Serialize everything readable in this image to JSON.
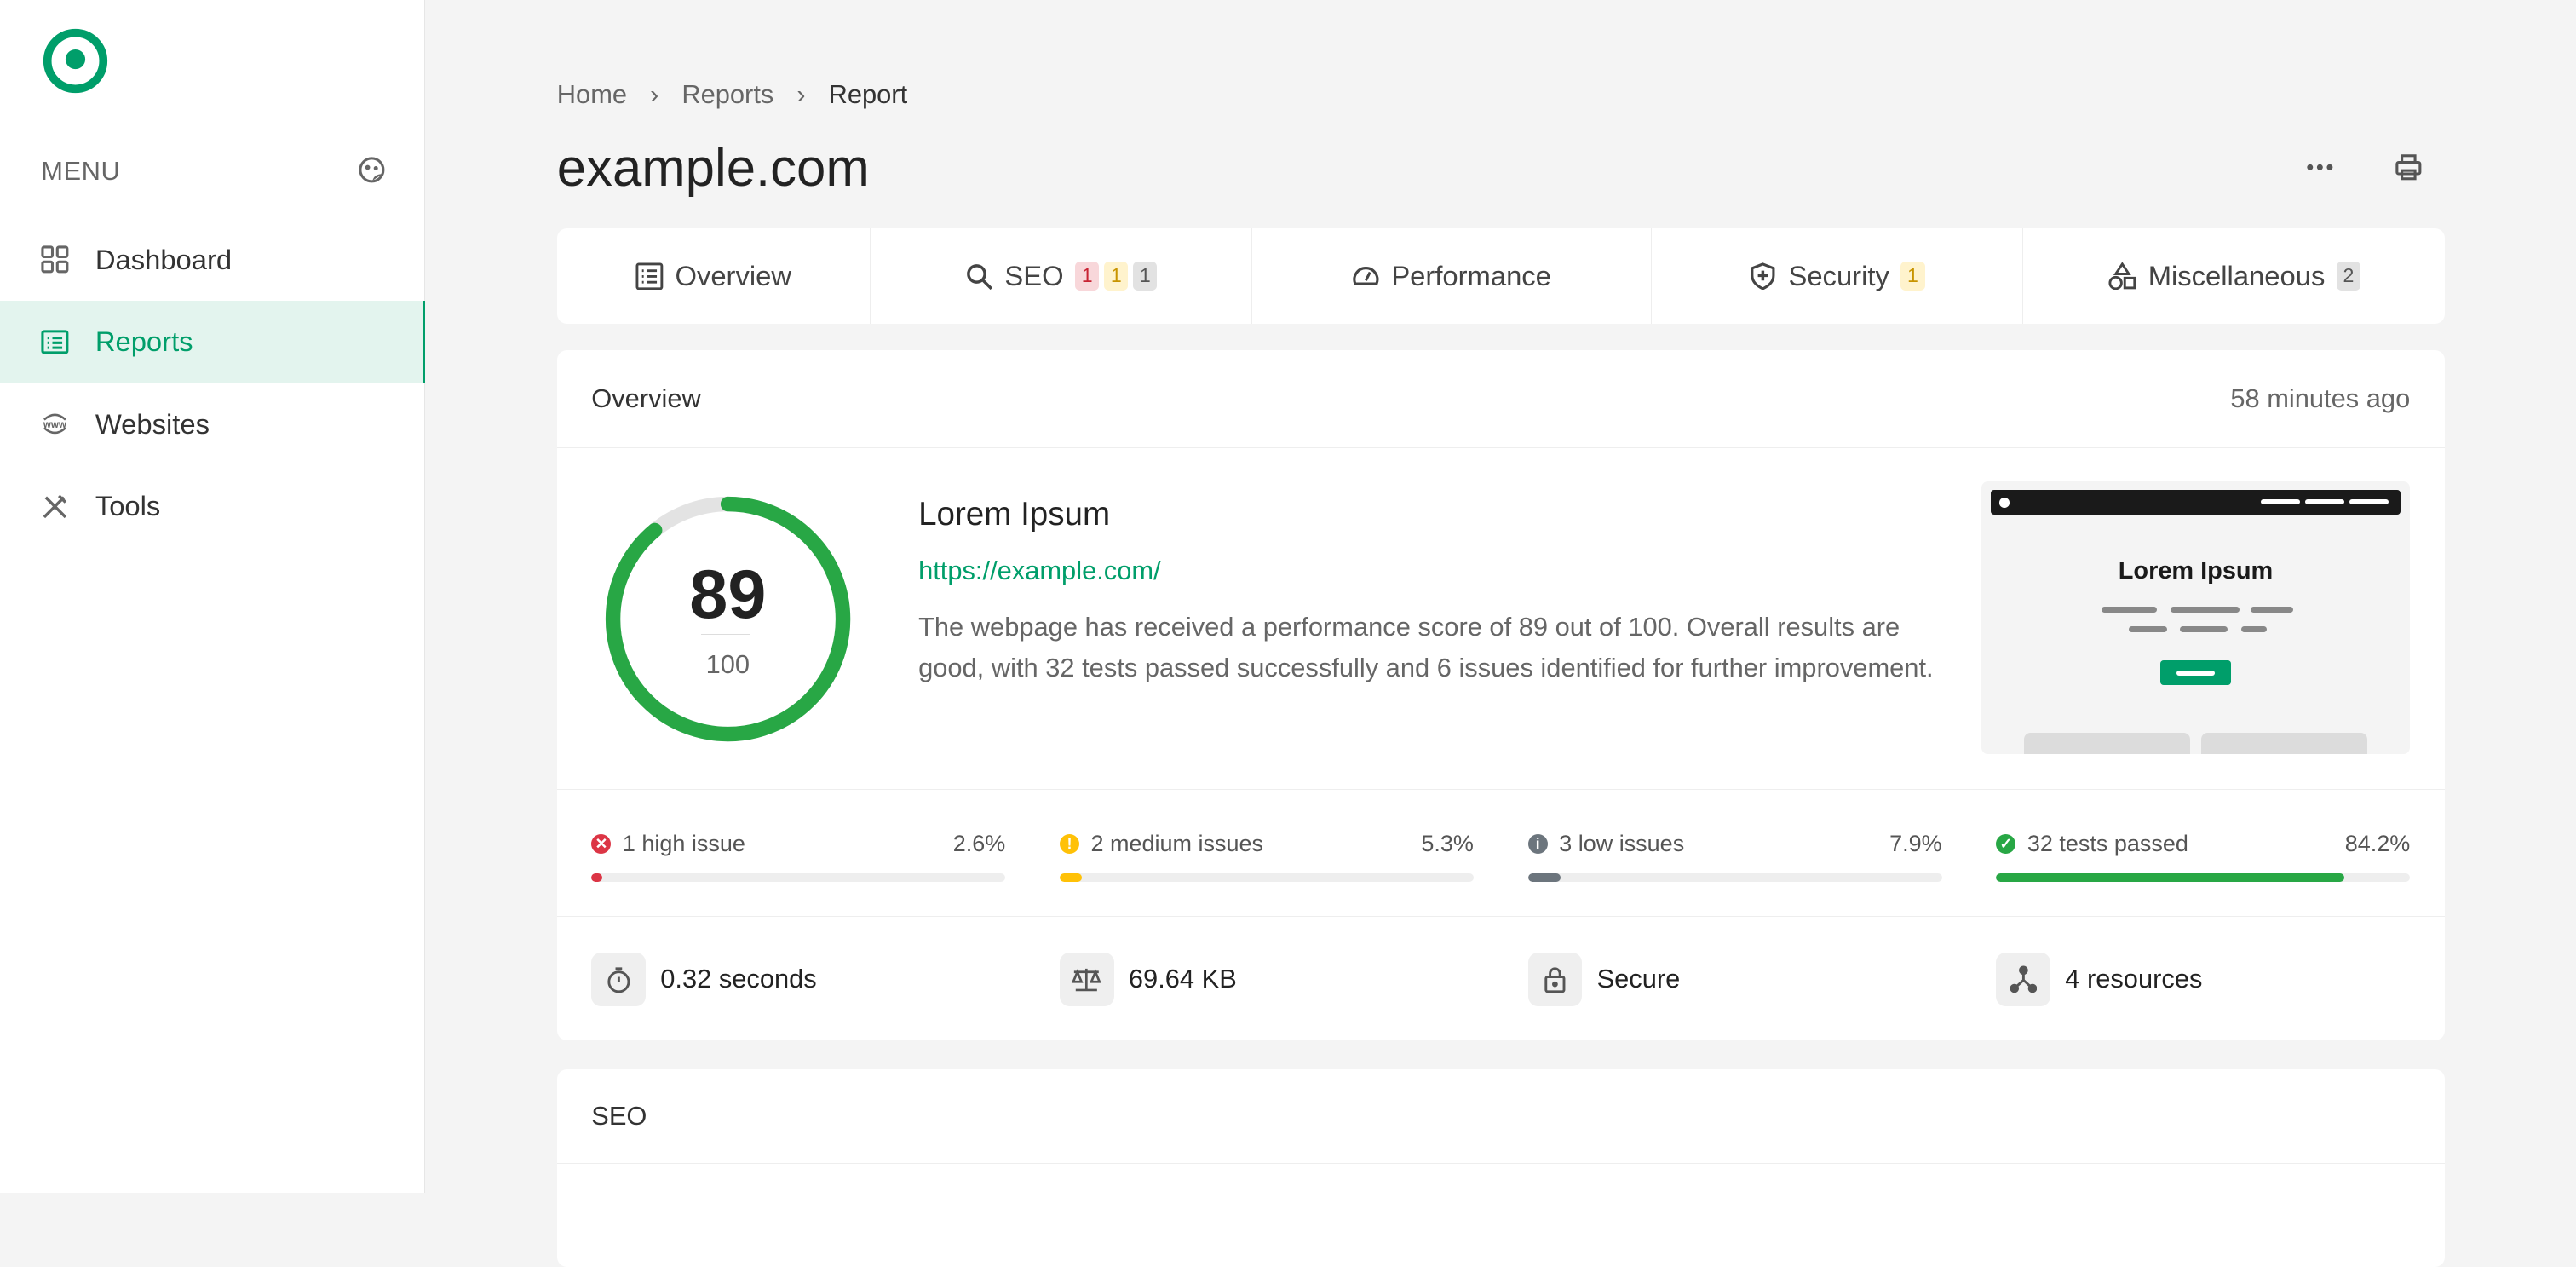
{
  "colors": {
    "brand": "#009e6a",
    "score": "#28a745",
    "high": "#dc3545",
    "medium": "#ffc107",
    "low": "#6c757d"
  },
  "sidebar": {
    "menu_label": "MENU",
    "items": [
      {
        "label": "Dashboard",
        "icon": "grid-icon"
      },
      {
        "label": "Reports",
        "icon": "list-icon",
        "active": true
      },
      {
        "label": "Websites",
        "icon": "www-icon"
      },
      {
        "label": "Tools",
        "icon": "tools-icon"
      }
    ]
  },
  "breadcrumb": [
    "Home",
    "Reports",
    "Report"
  ],
  "page_title": "example.com",
  "tabs": [
    {
      "label": "Overview",
      "icon": "list-icon"
    },
    {
      "label": "SEO",
      "icon": "search-icon",
      "badges": [
        "1",
        "1",
        "1"
      ]
    },
    {
      "label": "Performance",
      "icon": "gauge-icon"
    },
    {
      "label": "Security",
      "icon": "shield-icon",
      "badges": [
        "1"
      ]
    },
    {
      "label": "Miscellaneous",
      "icon": "shapes-icon",
      "badges": [
        "2"
      ]
    }
  ],
  "overview": {
    "title": "Overview",
    "time": "58 minutes ago",
    "score": "89",
    "score_max": "100",
    "score_fraction": 0.89,
    "site_name": "Lorem Ipsum",
    "url": "https://example.com/",
    "description": "The webpage has received a performance score of 89 out of 100. Overall results are good, with 32 tests passed successfully and 6 issues identified for further improvement.",
    "thumbnail_title": "Lorem Ipsum",
    "issues": [
      {
        "label": "1 high issue",
        "percent": "2.6%",
        "value": 2.6
      },
      {
        "label": "2 medium issues",
        "percent": "5.3%",
        "value": 5.3
      },
      {
        "label": "3 low issues",
        "percent": "7.9%",
        "value": 7.9
      },
      {
        "label": "32 tests passed",
        "percent": "84.2%",
        "value": 84.2
      }
    ],
    "stats": [
      {
        "label": "0.32 seconds",
        "icon": "stopwatch-icon"
      },
      {
        "label": "69.64 KB",
        "icon": "scale-icon"
      },
      {
        "label": "Secure",
        "icon": "lock-icon"
      },
      {
        "label": "4 resources",
        "icon": "nodes-icon"
      }
    ]
  },
  "seo": {
    "title": "SEO"
  }
}
